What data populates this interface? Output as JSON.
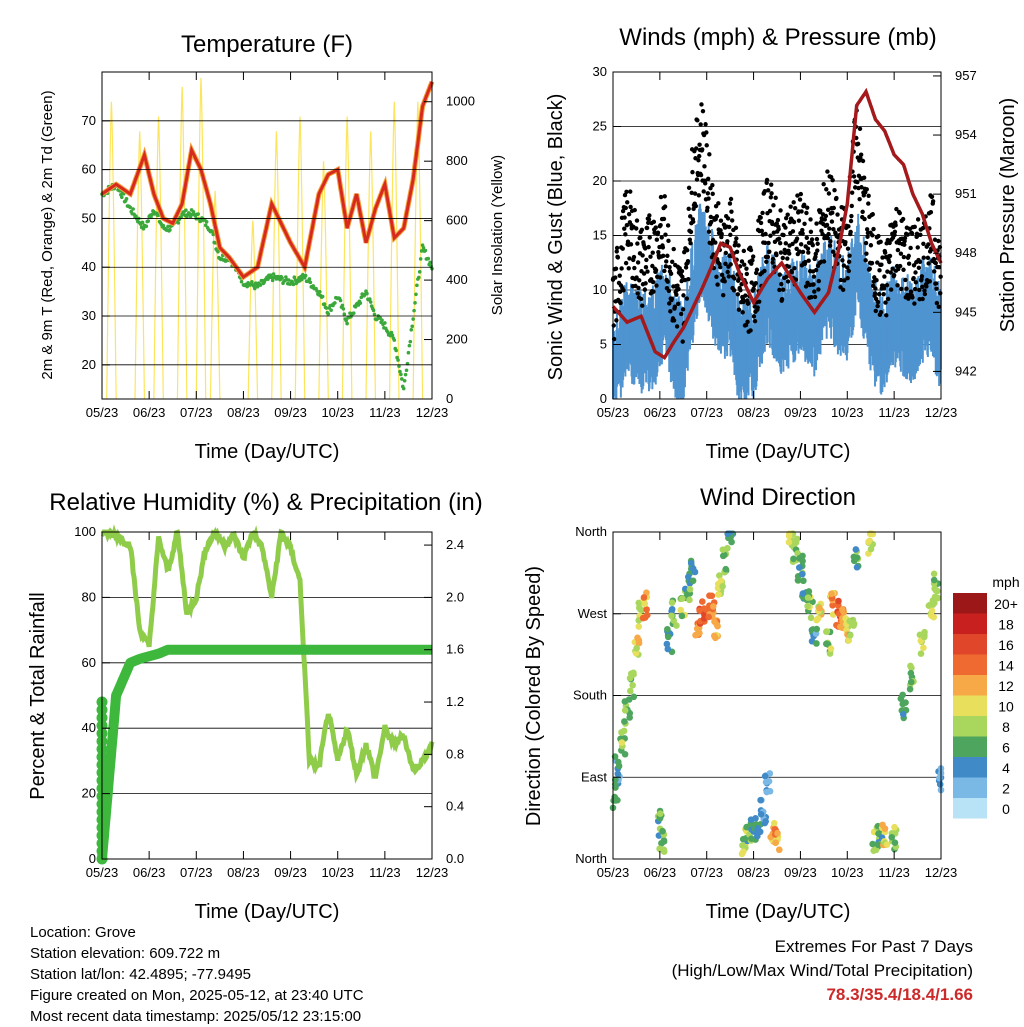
{
  "info": {
    "location": "Location: Grove",
    "elevation": "Station elevation: 609.722 m",
    "latlon": "Station lat/lon: 42.4895; -77.9495",
    "created": "Figure created on Mon, 2025-05-12, at 23:40 UTC",
    "recent": "Most recent data timestamp: 2025/05/12 23:15:00"
  },
  "extremes": {
    "title": "Extremes For Past 7 Days",
    "subtitle": "(High/Low/Max Wind/Total Precipitation)",
    "values": "78.3/35.4/18.4/1.66"
  },
  "x_ticks": [
    "05/23",
    "06/23",
    "07/23",
    "08/23",
    "09/23",
    "10/23",
    "11/23",
    "12/23"
  ],
  "x_label": "Time (Day/UTC)",
  "chart_data": [
    {
      "type": "line",
      "title": "Temperature (F)",
      "xlabel": "Time (Day/UTC)",
      "ylabel": "2m & 9m T (Red, Orange) & 2m Td (Green)",
      "ylabel_right": "Solar Insolation (Yellow)",
      "ylim": [
        13,
        80
      ],
      "ylim_right": [
        0,
        1100
      ],
      "yticks": [
        20,
        30,
        40,
        50,
        60,
        70
      ],
      "yticks_right": [
        0,
        200,
        400,
        600,
        800,
        1000
      ],
      "x": [
        0,
        0.3,
        0.6,
        0.9,
        1.1,
        1.3,
        1.5,
        1.7,
        1.9,
        2.1,
        2.3,
        2.5,
        2.7,
        3.0,
        3.3,
        3.6,
        4.0,
        4.3,
        4.6,
        4.8,
        5.0,
        5.2,
        5.4,
        5.6,
        5.8,
        6.0,
        6.2,
        6.4,
        6.6,
        6.8,
        7.0
      ],
      "series": [
        {
          "name": "2m T",
          "color": "#d62a1e",
          "values": [
            55,
            57,
            55,
            63,
            55,
            50,
            49,
            53,
            64,
            60,
            53,
            44,
            42,
            38,
            40,
            53,
            45,
            40,
            55,
            59,
            60,
            48,
            55,
            45,
            52,
            57,
            46,
            48,
            58,
            73,
            78
          ]
        },
        {
          "name": "2m Td",
          "color": "#3aa83a",
          "values": [
            55,
            57,
            52,
            48,
            52,
            48,
            48,
            51,
            51,
            50,
            48,
            42,
            42,
            37,
            36,
            38,
            37,
            38,
            35,
            31,
            34,
            29,
            32,
            35,
            30,
            28,
            25,
            15,
            30,
            44,
            40
          ]
        },
        {
          "name": "Solar Insolation",
          "color": "#fce24a",
          "peaks": [
            0.2,
            0.8,
            1.2,
            1.7,
            2.1,
            2.4,
            3.2,
            3.7,
            4.2,
            4.7,
            5.2,
            5.7,
            6.2,
            6.7
          ],
          "peak_values": [
            1000,
            900,
            950,
            1050,
            1080,
            700,
            600,
            900,
            950,
            800,
            950,
            900,
            1000,
            1000
          ]
        }
      ]
    },
    {
      "type": "line",
      "title": "Winds (mph) & Pressure (mb)",
      "xlabel": "Time (Day/UTC)",
      "ylabel": "Sonic Wind & Gust (Blue, Black)",
      "ylabel_right": "Station Pressure (Maroon)",
      "ylim": [
        0,
        30
      ],
      "ylim_right": [
        940.6,
        957.2
      ],
      "yticks": [
        0,
        5,
        10,
        15,
        20,
        25,
        30
      ],
      "yticks_right": [
        942,
        945,
        948,
        951,
        954,
        957
      ],
      "x": [
        0,
        0.3,
        0.6,
        0.9,
        1.1,
        1.3,
        1.5,
        1.7,
        1.9,
        2.1,
        2.3,
        2.5,
        2.7,
        3.0,
        3.3,
        3.6,
        4.0,
        4.3,
        4.6,
        4.8,
        5.0,
        5.2,
        5.4,
        5.6,
        5.8,
        6.0,
        6.2,
        6.4,
        6.6,
        6.8,
        7.0
      ],
      "series": [
        {
          "name": "Sonic Wind",
          "color": "#4f94d0",
          "values": [
            3,
            8,
            6,
            7,
            10,
            6,
            5,
            11,
            15,
            12,
            9,
            10,
            5,
            6,
            11,
            8,
            10,
            8,
            12,
            10,
            9,
            14,
            10,
            7,
            6,
            9,
            8,
            7,
            9,
            10,
            6
          ]
        },
        {
          "name": "Gust",
          "color": "#000000",
          "values": [
            8,
            16,
            12,
            14,
            15,
            10,
            9,
            20,
            24,
            17,
            13,
            15,
            10,
            10,
            17,
            13,
            15,
            12,
            18,
            14,
            14,
            24,
            16,
            12,
            10,
            15,
            13,
            12,
            13,
            15,
            11
          ]
        },
        {
          "name": "Station Pressure",
          "color": "#a3191c",
          "values": [
            945.3,
            944.5,
            944.8,
            943.0,
            942.7,
            943.5,
            944.2,
            945.2,
            946.2,
            947.3,
            948.5,
            948.3,
            947.0,
            945.5,
            946.7,
            947.5,
            946.0,
            945.0,
            946.0,
            948.0,
            950.5,
            955.5,
            956.2,
            954.8,
            954.2,
            953.0,
            952.5,
            951.0,
            950.0,
            948.5,
            947.5
          ]
        }
      ]
    },
    {
      "type": "line",
      "title": "Relative Humidity (%) & Precipitation (in)",
      "xlabel": "Time (Day/UTC)",
      "ylabel": "Percent & Total Rainfall",
      "ylim": [
        0,
        100
      ],
      "ylim_right": [
        0,
        2.5
      ],
      "yticks": [
        0,
        20,
        40,
        60,
        80,
        100
      ],
      "yticks_right": [
        "0.0",
        "0.4",
        "0.8",
        "1.2",
        "1.6",
        "2.0",
        "2.4"
      ],
      "x": [
        0,
        0.3,
        0.6,
        0.8,
        1.0,
        1.2,
        1.4,
        1.6,
        1.8,
        2.0,
        2.2,
        2.4,
        2.6,
        2.8,
        3.0,
        3.2,
        3.4,
        3.6,
        3.8,
        4.0,
        4.2,
        4.4,
        4.6,
        4.8,
        5.0,
        5.2,
        5.4,
        5.6,
        5.8,
        6.0,
        6.2,
        6.4,
        6.6,
        6.8,
        7.0
      ],
      "series": [
        {
          "name": "Relative Humidity",
          "color": "#8fcc4a",
          "values": [
            100,
            99,
            96,
            70,
            65,
            98,
            88,
            100,
            75,
            80,
            95,
            100,
            96,
            99,
            92,
            100,
            95,
            80,
            100,
            95,
            85,
            30,
            28,
            45,
            30,
            40,
            26,
            35,
            25,
            40,
            35,
            38,
            27,
            30,
            35
          ]
        },
        {
          "name": "Total Precipitation",
          "color": "#3db83d",
          "values": [
            0,
            1.25,
            1.5,
            1.53,
            1.55,
            1.57,
            1.6,
            1.6,
            1.6,
            1.6,
            1.6,
            1.6,
            1.6,
            1.6,
            1.6,
            1.6,
            1.6,
            1.6,
            1.6,
            1.6,
            1.6,
            1.6,
            1.6,
            1.6,
            1.6,
            1.6,
            1.6,
            1.6,
            1.6,
            1.6,
            1.6,
            1.6,
            1.6,
            1.6,
            1.6
          ]
        }
      ]
    },
    {
      "type": "scatter",
      "title": "Wind Direction",
      "xlabel": "Time (Day/UTC)",
      "ylabel": "Direction (Colored By Speed)",
      "ylim": [
        0,
        360
      ],
      "yticks": [
        "North",
        "East",
        "South",
        "West",
        "North"
      ],
      "legend_title": "mph",
      "legend_labels": [
        "20+",
        "18",
        "16",
        "14",
        "12",
        "10",
        "8",
        "6",
        "4",
        "2",
        "0"
      ],
      "legend_colors": [
        "#9c1818",
        "#c8201e",
        "#e0462a",
        "#ef6a30",
        "#f7a847",
        "#e8e05c",
        "#a9d75e",
        "#4ea55e",
        "#3f8ac7",
        "#7ab8e6",
        "#b8e2f6"
      ],
      "points_approx": [
        [
          0.05,
          70,
          6
        ],
        [
          0.1,
          100,
          4
        ],
        [
          0.2,
          130,
          8
        ],
        [
          0.3,
          160,
          7
        ],
        [
          0.4,
          190,
          8
        ],
        [
          0.5,
          230,
          10
        ],
        [
          0.6,
          270,
          9
        ],
        [
          0.7,
          280,
          12
        ],
        [
          1.0,
          40,
          6
        ],
        [
          1.05,
          20,
          7
        ],
        [
          1.2,
          240,
          5
        ],
        [
          1.3,
          270,
          6
        ],
        [
          1.5,
          280,
          8
        ],
        [
          1.6,
          300,
          6
        ],
        [
          1.7,
          320,
          5
        ],
        [
          1.8,
          260,
          12
        ],
        [
          1.9,
          270,
          14
        ],
        [
          2.0,
          265,
          15
        ],
        [
          2.1,
          280,
          13
        ],
        [
          2.2,
          255,
          12
        ],
        [
          2.3,
          300,
          9
        ],
        [
          2.4,
          330,
          7
        ],
        [
          2.5,
          360,
          5
        ],
        [
          2.8,
          20,
          8
        ],
        [
          2.9,
          30,
          6
        ],
        [
          3.0,
          35,
          5
        ],
        [
          3.1,
          40,
          4
        ],
        [
          3.2,
          50,
          3
        ],
        [
          3.3,
          80,
          2
        ],
        [
          3.4,
          30,
          11
        ],
        [
          3.5,
          25,
          12
        ],
        [
          3.8,
          355,
          9
        ],
        [
          3.9,
          340,
          8
        ],
        [
          4.0,
          320,
          6
        ],
        [
          4.1,
          300,
          5
        ],
        [
          4.2,
          280,
          8
        ],
        [
          4.3,
          250,
          4
        ],
        [
          4.4,
          270,
          10
        ],
        [
          4.6,
          240,
          8
        ],
        [
          4.7,
          280,
          12
        ],
        [
          4.8,
          270,
          15
        ],
        [
          4.9,
          260,
          13
        ],
        [
          5.0,
          250,
          10
        ],
        [
          5.1,
          260,
          8
        ],
        [
          5.2,
          330,
          6
        ],
        [
          5.5,
          350,
          9
        ],
        [
          5.6,
          20,
          8
        ],
        [
          5.7,
          25,
          6
        ],
        [
          5.8,
          30,
          10
        ],
        [
          6.0,
          20,
          8
        ],
        [
          6.2,
          170,
          6
        ],
        [
          6.4,
          200,
          7
        ],
        [
          6.6,
          240,
          8
        ],
        [
          6.8,
          280,
          9
        ],
        [
          6.9,
          300,
          7
        ],
        [
          7.0,
          90,
          4
        ]
      ]
    }
  ]
}
